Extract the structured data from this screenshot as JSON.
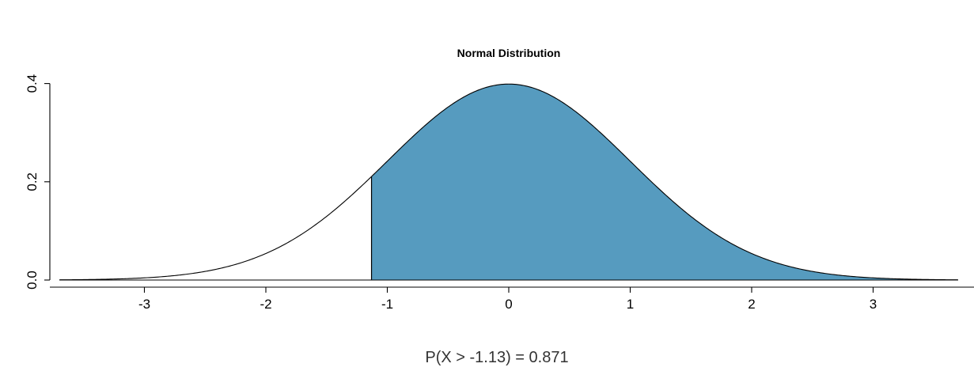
{
  "chart_data": {
    "type": "area",
    "title": "Normal Distribution",
    "xlabel": "",
    "ylabel": "",
    "distribution": {
      "mean": 0,
      "sd": 1
    },
    "xlim": [
      -3.7,
      3.7
    ],
    "ylim": [
      0,
      0.4
    ],
    "x_ticks": [
      -3,
      -2,
      -1,
      0,
      1,
      2,
      3
    ],
    "x_tick_labels": [
      "-3",
      "-2",
      "-1",
      "0",
      "1",
      "2",
      "3"
    ],
    "y_ticks": [
      0.0,
      0.2,
      0.4
    ],
    "y_tick_labels": [
      "0.0",
      "0.2",
      "0.4"
    ],
    "shaded_region": {
      "from": -1.13,
      "to": 3.7,
      "direction": "upper tail"
    },
    "probability": 0.871,
    "caption": "P(X > -1.13) = 0.871",
    "grid": false,
    "colors": {
      "shade": "#569BBF",
      "curve": "#000000",
      "axis": "#000000"
    }
  }
}
